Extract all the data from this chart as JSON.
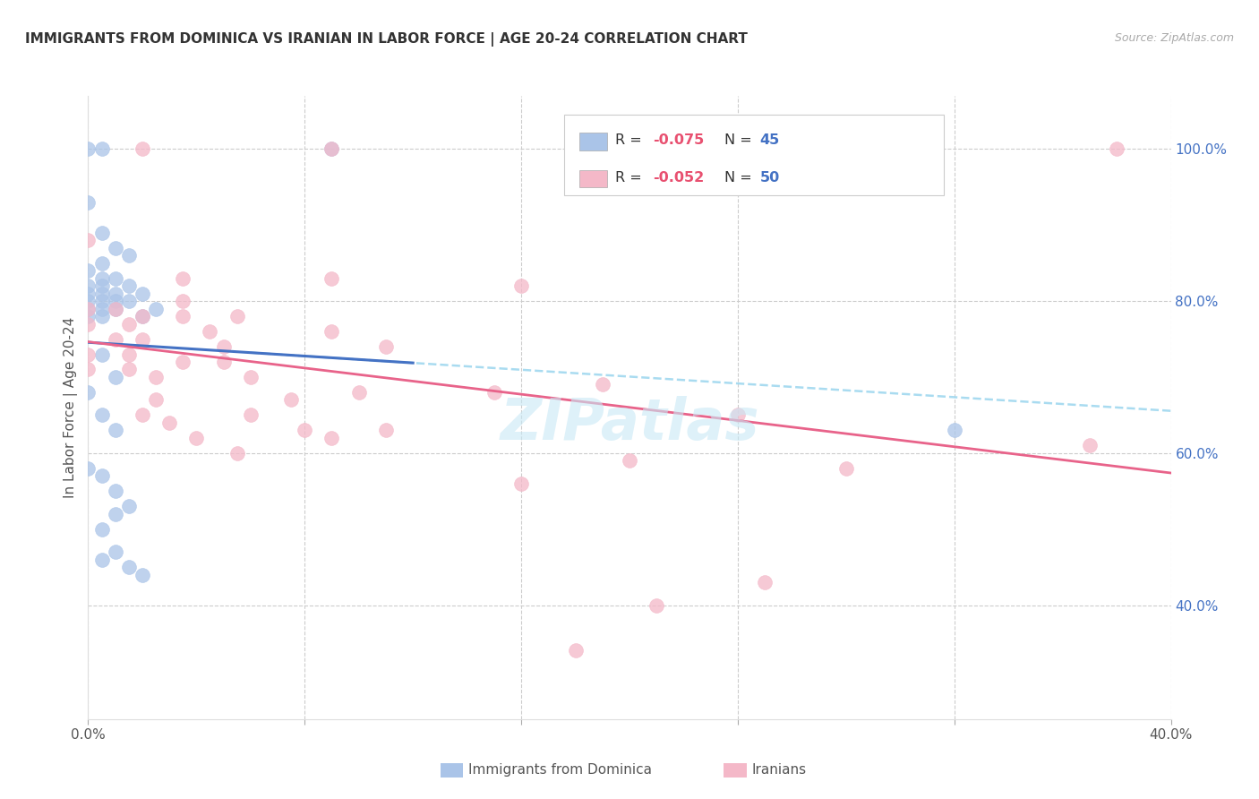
{
  "title": "IMMIGRANTS FROM DOMINICA VS IRANIAN IN LABOR FORCE | AGE 20-24 CORRELATION CHART",
  "source": "Source: ZipAtlas.com",
  "ylabel": "In Labor Force | Age 20-24",
  "xlim": [
    0.0,
    0.4
  ],
  "ylim": [
    0.25,
    1.07
  ],
  "xticks": [
    0.0,
    0.08,
    0.16,
    0.24,
    0.32,
    0.4
  ],
  "yticks_right": [
    1.0,
    0.8,
    0.6,
    0.4
  ],
  "ytick_labels_right": [
    "100.0%",
    "80.0%",
    "60.0%",
    "40.0%"
  ],
  "xtick_labels": [
    "0.0%",
    "",
    "",
    "",
    "",
    "40.0%"
  ],
  "grid_color": "#cccccc",
  "background_color": "#ffffff",
  "dominica_color": "#aac4e8",
  "iranian_color": "#f4b8c8",
  "dominica_line_color": "#4472c4",
  "iranian_line_color": "#e8638a",
  "dashed_line_color": "#a0d8ef",
  "r_value_color": "#e85070",
  "n_value_color": "#4472c4",
  "dominica_scatter": [
    [
      0.0,
      1.0
    ],
    [
      0.005,
      1.0
    ],
    [
      0.09,
      1.0
    ],
    [
      0.0,
      0.93
    ],
    [
      0.005,
      0.89
    ],
    [
      0.01,
      0.87
    ],
    [
      0.015,
      0.86
    ],
    [
      0.005,
      0.85
    ],
    [
      0.0,
      0.84
    ],
    [
      0.01,
      0.83
    ],
    [
      0.005,
      0.83
    ],
    [
      0.0,
      0.82
    ],
    [
      0.005,
      0.82
    ],
    [
      0.015,
      0.82
    ],
    [
      0.0,
      0.81
    ],
    [
      0.005,
      0.81
    ],
    [
      0.01,
      0.81
    ],
    [
      0.02,
      0.81
    ],
    [
      0.0,
      0.8
    ],
    [
      0.005,
      0.8
    ],
    [
      0.01,
      0.8
    ],
    [
      0.015,
      0.8
    ],
    [
      0.0,
      0.79
    ],
    [
      0.005,
      0.79
    ],
    [
      0.01,
      0.79
    ],
    [
      0.0,
      0.78
    ],
    [
      0.005,
      0.78
    ],
    [
      0.02,
      0.78
    ],
    [
      0.025,
      0.79
    ],
    [
      0.005,
      0.73
    ],
    [
      0.01,
      0.7
    ],
    [
      0.0,
      0.68
    ],
    [
      0.005,
      0.65
    ],
    [
      0.01,
      0.63
    ],
    [
      0.005,
      0.57
    ],
    [
      0.01,
      0.55
    ],
    [
      0.015,
      0.53
    ],
    [
      0.32,
      0.63
    ],
    [
      0.005,
      0.5
    ],
    [
      0.01,
      0.47
    ],
    [
      0.0,
      0.58
    ],
    [
      0.01,
      0.52
    ],
    [
      0.005,
      0.46
    ],
    [
      0.015,
      0.45
    ],
    [
      0.02,
      0.44
    ]
  ],
  "iranian_scatter": [
    [
      0.02,
      1.0
    ],
    [
      0.09,
      1.0
    ],
    [
      0.38,
      1.0
    ],
    [
      0.0,
      0.88
    ],
    [
      0.035,
      0.83
    ],
    [
      0.09,
      0.83
    ],
    [
      0.16,
      0.82
    ],
    [
      0.035,
      0.8
    ],
    [
      0.0,
      0.79
    ],
    [
      0.01,
      0.79
    ],
    [
      0.02,
      0.78
    ],
    [
      0.035,
      0.78
    ],
    [
      0.055,
      0.78
    ],
    [
      0.0,
      0.77
    ],
    [
      0.015,
      0.77
    ],
    [
      0.045,
      0.76
    ],
    [
      0.09,
      0.76
    ],
    [
      0.01,
      0.75
    ],
    [
      0.02,
      0.75
    ],
    [
      0.05,
      0.74
    ],
    [
      0.11,
      0.74
    ],
    [
      0.0,
      0.73
    ],
    [
      0.015,
      0.73
    ],
    [
      0.035,
      0.72
    ],
    [
      0.05,
      0.72
    ],
    [
      0.0,
      0.71
    ],
    [
      0.015,
      0.71
    ],
    [
      0.025,
      0.7
    ],
    [
      0.06,
      0.7
    ],
    [
      0.19,
      0.69
    ],
    [
      0.1,
      0.68
    ],
    [
      0.15,
      0.68
    ],
    [
      0.025,
      0.67
    ],
    [
      0.075,
      0.67
    ],
    [
      0.02,
      0.65
    ],
    [
      0.06,
      0.65
    ],
    [
      0.24,
      0.65
    ],
    [
      0.03,
      0.64
    ],
    [
      0.08,
      0.63
    ],
    [
      0.11,
      0.63
    ],
    [
      0.04,
      0.62
    ],
    [
      0.09,
      0.62
    ],
    [
      0.055,
      0.6
    ],
    [
      0.2,
      0.59
    ],
    [
      0.28,
      0.58
    ],
    [
      0.37,
      0.61
    ],
    [
      0.16,
      0.56
    ],
    [
      0.25,
      0.43
    ],
    [
      0.21,
      0.4
    ],
    [
      0.18,
      0.34
    ]
  ]
}
